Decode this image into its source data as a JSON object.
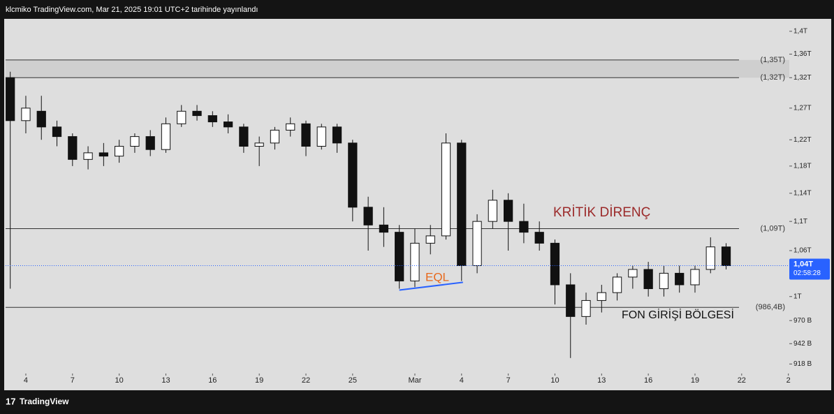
{
  "header": "klcmiko TradingView.com, Mar 21, 2025 19:01 UTC+2 tarihinde yayınlandı",
  "footer": "TradingView",
  "chart_data": {
    "type": "candlestick",
    "y_scale": "log",
    "x": [
      2,
      3,
      4,
      5,
      6,
      7,
      8,
      9,
      10,
      11,
      12,
      13,
      14,
      15,
      16,
      17,
      18,
      19,
      20,
      21,
      22,
      23,
      24,
      25,
      26,
      27,
      28,
      29,
      30,
      31,
      32,
      33,
      34,
      35,
      36,
      37,
      38,
      39,
      40,
      41,
      42,
      43,
      44,
      45,
      46,
      47,
      48
    ],
    "open": [
      1320,
      1250,
      1265,
      1240,
      1225,
      1190,
      1200,
      1195,
      1210,
      1225,
      1205,
      1245,
      1265,
      1258,
      1248,
      1240,
      1210,
      1215,
      1235,
      1245,
      1210,
      1240,
      1215,
      1120,
      1095,
      1085,
      1020,
      1070,
      1080,
      1215,
      1040,
      1100,
      1130,
      1100,
      1085,
      1070,
      1015,
      975,
      995,
      1005,
      1025,
      1035,
      1010,
      1030,
      1015,
      1035,
      1065
    ],
    "high": [
      1330,
      1290,
      1290,
      1250,
      1230,
      1210,
      1215,
      1220,
      1230,
      1235,
      1255,
      1275,
      1275,
      1265,
      1260,
      1245,
      1225,
      1240,
      1255,
      1250,
      1245,
      1245,
      1220,
      1135,
      1120,
      1095,
      1090,
      1095,
      1230,
      1220,
      1110,
      1145,
      1140,
      1125,
      1100,
      1075,
      1030,
      1005,
      1015,
      1030,
      1040,
      1045,
      1040,
      1040,
      1040,
      1078,
      1070
    ],
    "low": [
      1010,
      1230,
      1220,
      1210,
      1180,
      1175,
      1180,
      1185,
      1200,
      1195,
      1200,
      1240,
      1250,
      1240,
      1230,
      1200,
      1180,
      1205,
      1225,
      1195,
      1205,
      1200,
      1100,
      1060,
      1065,
      1010,
      1012,
      1055,
      1075,
      1020,
      1030,
      1090,
      1060,
      1070,
      1060,
      990,
      925,
      965,
      980,
      995,
      1010,
      1000,
      1000,
      1005,
      1005,
      1030,
      1035
    ],
    "close": [
      1250,
      1270,
      1240,
      1225,
      1190,
      1200,
      1195,
      1210,
      1225,
      1205,
      1245,
      1265,
      1258,
      1248,
      1240,
      1210,
      1215,
      1235,
      1245,
      1210,
      1240,
      1215,
      1120,
      1095,
      1085,
      1020,
      1070,
      1080,
      1215,
      1040,
      1100,
      1130,
      1100,
      1085,
      1070,
      1015,
      975,
      995,
      1005,
      1025,
      1035,
      1010,
      1030,
      1015,
      1035,
      1065,
      1040
    ],
    "xlim": [
      1.7,
      52.06
    ],
    "xticks": [
      {
        "value": 3,
        "label": "4"
      },
      {
        "value": 6,
        "label": "7"
      },
      {
        "value": 9,
        "label": "10"
      },
      {
        "value": 12,
        "label": "13"
      },
      {
        "value": 15,
        "label": "16"
      },
      {
        "value": 18,
        "label": "19"
      },
      {
        "value": 21,
        "label": "22"
      },
      {
        "value": 24,
        "label": "25"
      },
      {
        "value": 28,
        "label": "Mar"
      },
      {
        "value": 31,
        "label": "4"
      },
      {
        "value": 34,
        "label": "7"
      },
      {
        "value": 37,
        "label": "10"
      },
      {
        "value": 40,
        "label": "13"
      },
      {
        "value": 43,
        "label": "16"
      },
      {
        "value": 46,
        "label": "19"
      },
      {
        "value": 49,
        "label": "22"
      },
      {
        "value": 52,
        "label": "2"
      }
    ],
    "ylim": [
      907,
      1421
    ],
    "yticks": [
      {
        "value": 1400,
        "label": "1,4T"
      },
      {
        "value": 1360,
        "label": "1,36T"
      },
      {
        "value": 1320,
        "label": "1,32T"
      },
      {
        "value": 1270,
        "label": "1,27T"
      },
      {
        "value": 1220,
        "label": "1,22T"
      },
      {
        "value": 1180,
        "label": "1,18T"
      },
      {
        "value": 1140,
        "label": "1,14T"
      },
      {
        "value": 1100,
        "label": "1,1T"
      },
      {
        "value": 1060,
        "label": "1,06T"
      },
      {
        "value": 1000,
        "label": "1T"
      },
      {
        "value": 970,
        "label": "970 B"
      },
      {
        "value": 942,
        "label": "942 B"
      },
      {
        "value": 918,
        "label": "918 B"
      }
    ],
    "levels": [
      {
        "value": 1350,
        "label": "(1,35T)"
      },
      {
        "value": 1320,
        "label": "(1,32T)"
      },
      {
        "value": 1090,
        "label": "(1,09T)"
      },
      {
        "value": 986.4,
        "label": "(986,4B)"
      }
    ],
    "current_price": {
      "value": 1040,
      "label": "1,04T",
      "countdown": "02:58:28"
    },
    "annotations": [
      "KRİTİK DİRENÇ",
      "EQL",
      "FON GİRİŞİ BÖLGESİ"
    ]
  }
}
